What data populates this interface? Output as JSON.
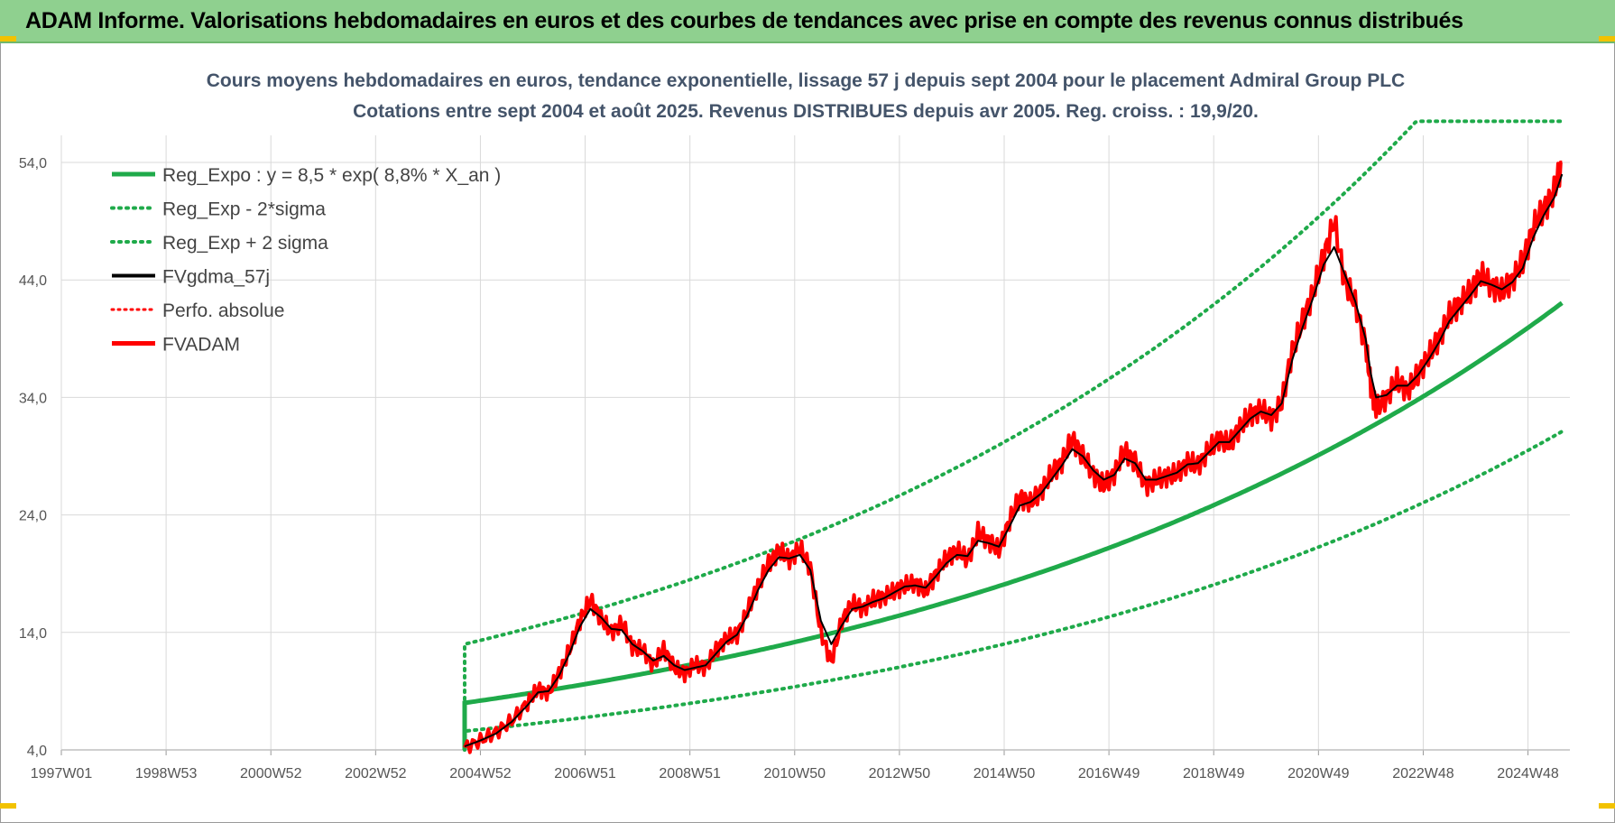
{
  "header": {
    "title": "ADAM Informe. Valorisations hebdomadaires en euros et des courbes de tendances avec prise en compte des revenus connus distribués"
  },
  "colors": {
    "header_bg": "#8fd08f",
    "reg_expo": "#1faa4a",
    "fvgdma": "#000000",
    "fvadam": "#ff0000",
    "perfo": "#ff0000",
    "grid": "#d9d9d9",
    "title": "#44546a",
    "accent_marks": "#f2c200"
  },
  "chart_data": {
    "type": "line",
    "title_line1": "Cours moyens hebdomadaires en euros, tendance exponentielle, lissage 57 j depuis sept 2004 pour le placement Admiral Group PLC",
    "title_line2": "Cotations entre sept 2004 et août 2025. Revenus DISTRIBUES depuis avr 2005. Reg. croiss. : 19,9/20.",
    "xlabel": "",
    "ylabel": "",
    "x_tick_labels": [
      "1997W01",
      "1998W53",
      "2000W52",
      "2002W52",
      "2004W52",
      "2006W51",
      "2008W51",
      "2010W50",
      "2012W50",
      "2014W50",
      "2016W49",
      "2018W49",
      "2020W49",
      "2022W48",
      "2024W48"
    ],
    "x_ticks_years": [
      1997.0,
      1999.0,
      2001.0,
      2003.0,
      2005.0,
      2007.0,
      2009.0,
      2011.0,
      2013.0,
      2015.0,
      2017.0,
      2019.0,
      2021.0,
      2023.0,
      2025.0
    ],
    "xlim": [
      1997.0,
      2025.8
    ],
    "y_tick_labels": [
      "4,0",
      "14,0",
      "24,0",
      "34,0",
      "44,0",
      "54,0"
    ],
    "y_ticks": [
      4,
      14,
      24,
      34,
      44,
      54
    ],
    "ylim": [
      4,
      58
    ],
    "grid": true,
    "legend_position": "top-left",
    "legend": [
      {
        "label": "Reg_Expo : y = 8,5 * exp( 8,8% *  X_an )",
        "style": "solid-green"
      },
      {
        "label": "Reg_Exp - 2*sigma",
        "style": "dotted-green"
      },
      {
        "label": "Reg_Exp + 2 sigma",
        "style": "dotted-green"
      },
      {
        "label": "FVgdma_57j",
        "style": "solid-black"
      },
      {
        "label": "Perfo. absolue",
        "style": "dotted-red"
      },
      {
        "label": "FVADAM",
        "style": "solid-red"
      }
    ],
    "regression": {
      "a": 8.5,
      "growth_pct": 8.8,
      "start_year": 2004.7,
      "end_year": 2025.65,
      "lower_start": 5.6,
      "upper_start": 13.0
    },
    "series": [
      {
        "name": "FVADAM",
        "x": [
          2004.7,
          2005.0,
          2005.3,
          2005.6,
          2005.9,
          2006.1,
          2006.3,
          2006.5,
          2006.7,
          2006.9,
          2007.1,
          2007.3,
          2007.5,
          2007.7,
          2007.9,
          2008.1,
          2008.3,
          2008.5,
          2008.7,
          2008.9,
          2009.1,
          2009.3,
          2009.5,
          2009.7,
          2009.9,
          2010.1,
          2010.3,
          2010.5,
          2010.7,
          2010.9,
          2011.1,
          2011.3,
          2011.5,
          2011.7,
          2011.9,
          2012.1,
          2012.3,
          2012.5,
          2012.7,
          2012.9,
          2013.1,
          2013.3,
          2013.5,
          2013.7,
          2013.9,
          2014.1,
          2014.3,
          2014.5,
          2014.7,
          2014.9,
          2015.1,
          2015.3,
          2015.5,
          2015.7,
          2015.9,
          2016.1,
          2016.3,
          2016.5,
          2016.7,
          2016.9,
          2017.1,
          2017.3,
          2017.5,
          2017.7,
          2017.9,
          2018.1,
          2018.3,
          2018.5,
          2018.7,
          2018.9,
          2019.1,
          2019.3,
          2019.5,
          2019.7,
          2019.9,
          2020.1,
          2020.3,
          2020.5,
          2020.7,
          2020.9,
          2021.1,
          2021.3,
          2021.5,
          2021.7,
          2021.9,
          2022.0,
          2022.1,
          2022.3,
          2022.5,
          2022.7,
          2022.9,
          2023.1,
          2023.3,
          2023.5,
          2023.7,
          2023.9,
          2024.1,
          2024.3,
          2024.5,
          2024.7,
          2024.9,
          2025.1,
          2025.3,
          2025.5,
          2025.65
        ],
        "values": [
          4.2,
          4.8,
          5.5,
          6.5,
          8.0,
          9.2,
          8.8,
          10.5,
          12.5,
          15.0,
          16.8,
          15.2,
          14.0,
          14.8,
          12.8,
          12.5,
          11.2,
          12.6,
          11.0,
          10.5,
          11.3,
          11.0,
          12.5,
          13.5,
          13.8,
          15.8,
          18.0,
          19.8,
          21.0,
          20.2,
          21.2,
          19.5,
          14.0,
          11.5,
          15.0,
          16.5,
          16.0,
          16.8,
          17.0,
          17.5,
          18.0,
          18.2,
          17.5,
          19.0,
          20.3,
          21.0,
          20.2,
          22.5,
          21.8,
          21.0,
          23.5,
          25.5,
          25.0,
          26.0,
          27.5,
          28.5,
          30.5,
          29.0,
          27.5,
          26.5,
          27.5,
          29.5,
          28.5,
          26.5,
          27.0,
          27.3,
          27.5,
          28.5,
          28.2,
          29.5,
          30.5,
          30.0,
          31.5,
          32.5,
          33.0,
          32.2,
          33.5,
          38.0,
          40.5,
          43.0,
          46.0,
          49.0,
          44.0,
          42.0,
          38.5,
          35.0,
          33.0,
          34.0,
          35.5,
          34.5,
          36.0,
          37.5,
          39.0,
          41.0,
          42.0,
          43.0,
          44.5,
          43.5,
          43.0,
          44.0,
          45.5,
          48.5,
          50.0,
          51.5,
          54.0
        ]
      },
      {
        "name": "FVgdma_57j",
        "x": [
          2004.7,
          2005.0,
          2005.3,
          2005.6,
          2005.9,
          2006.1,
          2006.3,
          2006.5,
          2006.7,
          2006.9,
          2007.1,
          2007.3,
          2007.5,
          2007.7,
          2007.9,
          2008.1,
          2008.3,
          2008.5,
          2008.7,
          2008.9,
          2009.1,
          2009.3,
          2009.5,
          2009.7,
          2009.9,
          2010.1,
          2010.3,
          2010.5,
          2010.7,
          2010.9,
          2011.1,
          2011.3,
          2011.5,
          2011.7,
          2011.9,
          2012.1,
          2012.3,
          2012.5,
          2012.7,
          2012.9,
          2013.1,
          2013.3,
          2013.5,
          2013.7,
          2013.9,
          2014.1,
          2014.3,
          2014.5,
          2014.7,
          2014.9,
          2015.1,
          2015.3,
          2015.5,
          2015.7,
          2015.9,
          2016.1,
          2016.3,
          2016.5,
          2016.7,
          2016.9,
          2017.1,
          2017.3,
          2017.5,
          2017.7,
          2017.9,
          2018.1,
          2018.3,
          2018.5,
          2018.7,
          2018.9,
          2019.1,
          2019.3,
          2019.5,
          2019.7,
          2019.9,
          2020.1,
          2020.3,
          2020.5,
          2020.7,
          2020.9,
          2021.1,
          2021.3,
          2021.5,
          2021.7,
          2021.9,
          2022.0,
          2022.1,
          2022.3,
          2022.5,
          2022.7,
          2022.9,
          2023.1,
          2023.3,
          2023.5,
          2023.7,
          2023.9,
          2024.1,
          2024.3,
          2024.5,
          2024.7,
          2024.9,
          2025.1,
          2025.3,
          2025.5,
          2025.65
        ],
        "values": [
          4.3,
          4.8,
          5.4,
          6.4,
          7.8,
          8.9,
          9.0,
          10.3,
          12.2,
          14.5,
          16.0,
          15.3,
          14.3,
          14.2,
          13.0,
          12.4,
          11.6,
          12.0,
          11.2,
          10.8,
          11.0,
          11.2,
          12.2,
          13.2,
          13.8,
          15.5,
          17.6,
          19.3,
          20.4,
          20.3,
          20.6,
          19.3,
          15.0,
          13.0,
          14.6,
          16.0,
          16.2,
          16.6,
          16.9,
          17.4,
          17.9,
          18.0,
          17.8,
          18.8,
          19.9,
          20.6,
          20.5,
          21.8,
          21.6,
          21.3,
          23.0,
          24.8,
          25.1,
          25.8,
          27.0,
          28.2,
          29.6,
          29.0,
          27.8,
          27.0,
          27.4,
          28.8,
          28.4,
          27.0,
          27.0,
          27.3,
          27.6,
          28.3,
          28.4,
          29.3,
          30.2,
          30.2,
          31.2,
          32.2,
          32.8,
          32.5,
          33.5,
          37.2,
          40.0,
          42.5,
          45.3,
          46.8,
          44.5,
          42.2,
          39.0,
          36.0,
          34.0,
          34.2,
          35.0,
          35.0,
          35.9,
          37.2,
          38.7,
          40.5,
          41.6,
          42.7,
          43.9,
          43.6,
          43.2,
          43.8,
          45.0,
          47.6,
          49.5,
          51.0,
          53.0
        ]
      }
    ]
  }
}
